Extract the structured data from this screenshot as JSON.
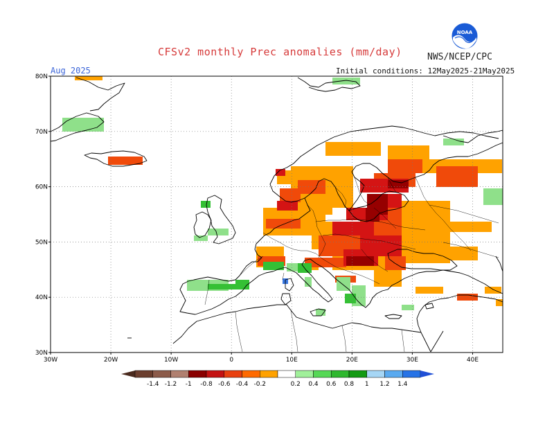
{
  "header": {
    "title": "CFSv2 monthly Prec anomalies (mm/day)",
    "org": "NWS/NCEP/CPC",
    "month": "Aug 2025",
    "initial_conditions": "Initial conditions: 12May2025-21May2025",
    "logo_text": "NOAA"
  },
  "map": {
    "lat_labels": [
      "80N",
      "70N",
      "60N",
      "50N",
      "40N",
      "30N"
    ],
    "lon_labels": [
      "30W",
      "20W",
      "10W",
      "0",
      "10E",
      "20E",
      "30E",
      "40E"
    ],
    "lat_range": [
      30,
      80
    ],
    "lon_range": [
      -30,
      45
    ]
  },
  "legend": {
    "labels": [
      "-1.4",
      "-1.2",
      "-1",
      "-0.8",
      "-0.6",
      "-0.4",
      "-0.2",
      "0.2",
      "0.4",
      "0.6",
      "0.8",
      "1",
      "1.2",
      "1.4"
    ],
    "colors": [
      "#6b3e2e",
      "#8c5b4a",
      "#b08070",
      "#8a0000",
      "#c41212",
      "#e8400f",
      "#ff6a00",
      "#ffa200",
      "#ffffff",
      "#a0f09a",
      "#56d856",
      "#2fb82f",
      "#139a13",
      "#a6d6f5",
      "#5aaaf0",
      "#2673e6"
    ],
    "outer_left": "#4a2a1e",
    "outer_right": "#1f4fd6"
  },
  "anomaly_colors": {
    "orange": "#ffa200",
    "red_orange": "#f04a0a",
    "red": "#d41414",
    "dark_red": "#960000",
    "light_green": "#8fe08a",
    "green": "#35c035",
    "blue": "#3a78e0"
  }
}
